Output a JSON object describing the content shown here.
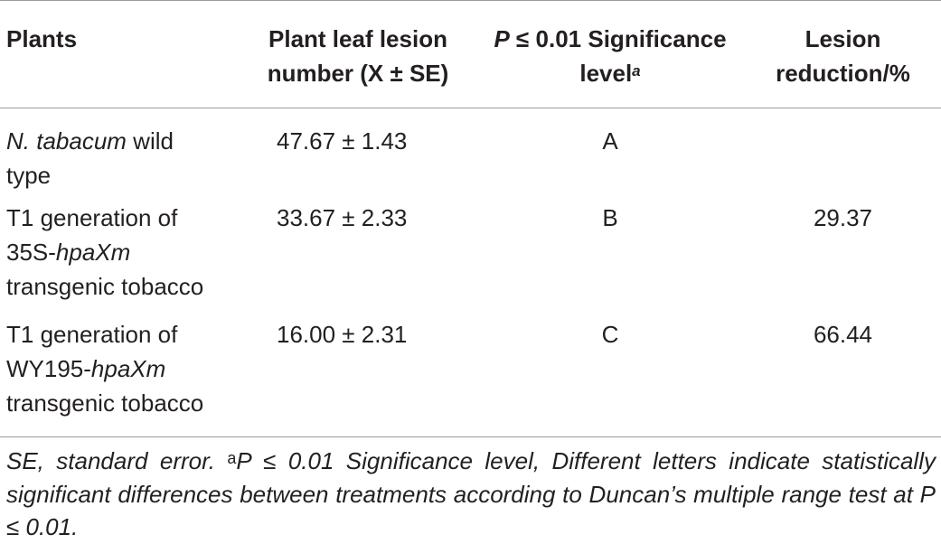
{
  "table": {
    "headers": {
      "plants": "Plants",
      "lesion_number_line1": "Plant leaf lesion",
      "lesion_number_line2": "number (X ± SE)",
      "significance_p": "P",
      "significance_threshold": "≤ 0.01 Significance",
      "significance_line2": "level",
      "significance_sup": "a",
      "reduction_line1": "Lesion",
      "reduction_line2": "reduction/%"
    },
    "rows": [
      {
        "plant_italic": "N. tabacum",
        "plant_rest": " wild",
        "plant_line2": "type",
        "lesion_number": "47.67 ± 1.43",
        "significance": "A",
        "reduction": ""
      },
      {
        "plant_line1": "T1 generation of",
        "plant_prefix": "35S-",
        "plant_gene": "hpaXm",
        "plant_line3": "transgenic tobacco",
        "lesion_number": "33.67 ± 2.33",
        "significance": "B",
        "reduction": "29.37"
      },
      {
        "plant_line1": "T1 generation of",
        "plant_prefix": "WY195-",
        "plant_gene": "hpaXm",
        "plant_line3": "transgenic tobacco",
        "lesion_number": "16.00 ± 2.31",
        "significance": "C",
        "reduction": "66.44"
      }
    ]
  },
  "footnote": {
    "part1": "SE, standard error. ",
    "sup": "a",
    "part2": "P ≤ 0.01 Significance level, Different letters indicate statistically significant differences between treatments according to Duncan’s multiple range test at P ≤ 0.01."
  }
}
